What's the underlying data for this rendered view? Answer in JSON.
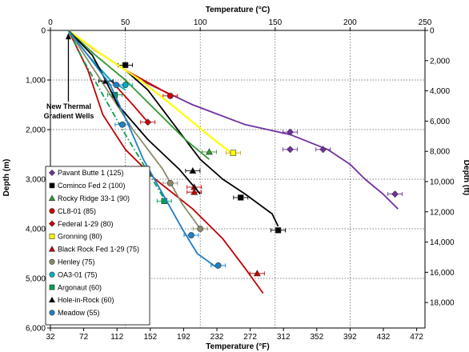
{
  "chart_data": {
    "type": "line",
    "top_axis": {
      "title": "Temperature (°C)",
      "range": [
        0,
        250
      ],
      "ticks": [
        0,
        50,
        100,
        150,
        200,
        250
      ]
    },
    "bottom_axis": {
      "title": "Temperature (°F)",
      "range": [
        32,
        482
      ],
      "ticks": [
        32,
        72,
        112,
        152,
        192,
        232,
        272,
        312,
        352,
        392,
        432,
        472
      ]
    },
    "left_axis": {
      "title": "Depth (m)",
      "range": [
        0,
        6000
      ],
      "ticks": [
        0,
        1000,
        2000,
        3000,
        4000,
        5000,
        6000
      ],
      "tick_labels": [
        "0",
        "1,000",
        "2,000",
        "3,000",
        "4,000",
        "5,000",
        "6,000"
      ]
    },
    "right_axis": {
      "title": "Depth (ft)",
      "range": [
        0,
        19685
      ],
      "ticks": [
        0,
        2000,
        4000,
        6000,
        8000,
        10000,
        12000,
        14000,
        16000,
        18000
      ],
      "tick_labels": [
        "0",
        "2,000",
        "4,000",
        "6,000",
        "8,000",
        "10,000",
        "12,000",
        "14,000",
        "16,000",
        "18,000"
      ]
    },
    "grid": "dotted",
    "legend_position": "bottom-left",
    "annotation": {
      "text": [
        "New Thermal",
        "Gradient Wells"
      ],
      "target": [
        12,
        50
      ]
    },
    "series": [
      {
        "name": "Pavant Butte 1 (125)",
        "color": "#7030a0",
        "marker": "diamond",
        "dash": "solid",
        "points": [
          [
            12,
            0
          ],
          [
            35,
            500
          ],
          [
            60,
            1000
          ],
          [
            95,
            1500
          ],
          [
            130,
            1900
          ],
          [
            160,
            2100
          ],
          [
            185,
            2400
          ],
          [
            200,
            2700
          ],
          [
            210,
            3000
          ],
          [
            222,
            3300
          ],
          [
            232,
            3600
          ]
        ],
        "markers": [
          [
            160,
            2050
          ],
          [
            182,
            2400
          ],
          [
            160,
            2400
          ],
          [
            230,
            3300
          ]
        ]
      },
      {
        "name": "Cominco Fed 2 (100)",
        "color": "#000000",
        "marker": "square",
        "dash": "solid",
        "points": [
          [
            12,
            0
          ],
          [
            30,
            400
          ],
          [
            50,
            800
          ],
          [
            65,
            1200
          ],
          [
            75,
            1600
          ],
          [
            85,
            2000
          ],
          [
            100,
            2600
          ],
          [
            115,
            3000
          ],
          [
            130,
            3300
          ],
          [
            148,
            3700
          ],
          [
            152,
            3950
          ]
        ],
        "markers": [
          [
            50,
            700
          ],
          [
            127,
            3370
          ],
          [
            152,
            4030
          ]
        ]
      },
      {
        "name": "Rocky Ridge 33-1 (90)",
        "color": "#339933",
        "marker": "triangle",
        "dash": "solid",
        "points": [
          [
            12,
            0
          ],
          [
            30,
            500
          ],
          [
            50,
            1000
          ],
          [
            70,
            1600
          ],
          [
            90,
            2200
          ],
          [
            106,
            2600
          ]
        ],
        "markers": [
          [
            106,
            2450
          ]
        ]
      },
      {
        "name": "CL8-01 (85)",
        "color": "#cc0000",
        "marker": "circle",
        "dash": "solid",
        "points": [
          [
            12,
            0
          ],
          [
            30,
            400
          ],
          [
            50,
            800
          ],
          [
            65,
            1050
          ],
          [
            80,
            1300
          ]
        ],
        "markers": [
          [
            80,
            1320
          ]
        ]
      },
      {
        "name": "Federal 1-29 (80)",
        "color": "#cc0000",
        "marker": "diamond",
        "dash": "solid",
        "points": [
          [
            12,
            0
          ],
          [
            25,
            500
          ],
          [
            40,
            1000
          ],
          [
            55,
            1500
          ],
          [
            65,
            1850
          ]
        ],
        "markers": [
          [
            65,
            1850
          ]
        ]
      },
      {
        "name": "Gronning (80)",
        "color": "#ffff00",
        "marker": "square",
        "dash": "solid",
        "points": [
          [
            12,
            0
          ],
          [
            35,
            500
          ],
          [
            60,
            1000
          ],
          [
            85,
            1600
          ],
          [
            105,
            2100
          ],
          [
            122,
            2500
          ]
        ],
        "markers": [
          [
            122,
            2470
          ]
        ]
      },
      {
        "name": "Black Rock Fed 1-29 (75)",
        "color": "#c00000",
        "marker": "triangle",
        "dash": "solid",
        "points": [
          [
            12,
            0
          ],
          [
            25,
            800
          ],
          [
            35,
            1700
          ],
          [
            50,
            2400
          ],
          [
            70,
            3000
          ],
          [
            95,
            3600
          ],
          [
            115,
            4200
          ],
          [
            130,
            4800
          ],
          [
            142,
            5300
          ]
        ],
        "markers": [
          [
            96,
            3160
          ],
          [
            96,
            3260
          ],
          [
            138,
            4900
          ]
        ]
      },
      {
        "name": "Henley (75)",
        "color": "#8b8b6b",
        "marker": "circle",
        "dash": "solid",
        "points": [
          [
            12,
            0
          ],
          [
            25,
            600
          ],
          [
            40,
            1300
          ],
          [
            55,
            2000
          ],
          [
            75,
            2800
          ],
          [
            88,
            3500
          ],
          [
            100,
            4000
          ]
        ],
        "markers": [
          [
            80,
            3080
          ],
          [
            100,
            4000
          ]
        ]
      },
      {
        "name": "OA3-01 (75)",
        "color": "#00b0c0",
        "marker": "circle",
        "dash": "solid",
        "points": [
          [
            12,
            0
          ],
          [
            25,
            500
          ],
          [
            40,
            1000
          ],
          [
            50,
            1200
          ]
        ],
        "markers": [
          [
            50,
            1100
          ]
        ]
      },
      {
        "name": "Argonaut (60)",
        "color": "#00a050",
        "marker": "square",
        "dash": "dashdot",
        "points": [
          [
            12,
            0
          ],
          [
            22,
            600
          ],
          [
            35,
            1300
          ],
          [
            48,
            2000
          ],
          [
            62,
            2700
          ],
          [
            76,
            3400
          ]
        ],
        "markers": [
          [
            43,
            1300
          ],
          [
            76,
            3440
          ]
        ]
      },
      {
        "name": "Hole-in-Rock (60)",
        "color": "#000000",
        "marker": "triangle",
        "dash": "solid",
        "points": [
          [
            12,
            0
          ],
          [
            28,
            500
          ],
          [
            35,
            900
          ],
          [
            45,
            1500
          ],
          [
            65,
            2200
          ],
          [
            86,
            2800
          ],
          [
            100,
            3300
          ]
        ],
        "markers": [
          [
            37,
            1020
          ],
          [
            95,
            2830
          ]
        ]
      },
      {
        "name": "Meadow (55)",
        "color": "#1f7fc8",
        "marker": "circle",
        "dash": "solid",
        "points": [
          [
            12,
            0
          ],
          [
            25,
            500
          ],
          [
            40,
            1100
          ],
          [
            52,
            1900
          ],
          [
            62,
            2600
          ],
          [
            75,
            3300
          ],
          [
            88,
            4000
          ],
          [
            98,
            4500
          ],
          [
            112,
            4800
          ]
        ],
        "markers": [
          [
            44,
            1100
          ],
          [
            48,
            1900
          ],
          [
            94,
            4130
          ],
          [
            112,
            4740
          ]
        ]
      }
    ]
  }
}
